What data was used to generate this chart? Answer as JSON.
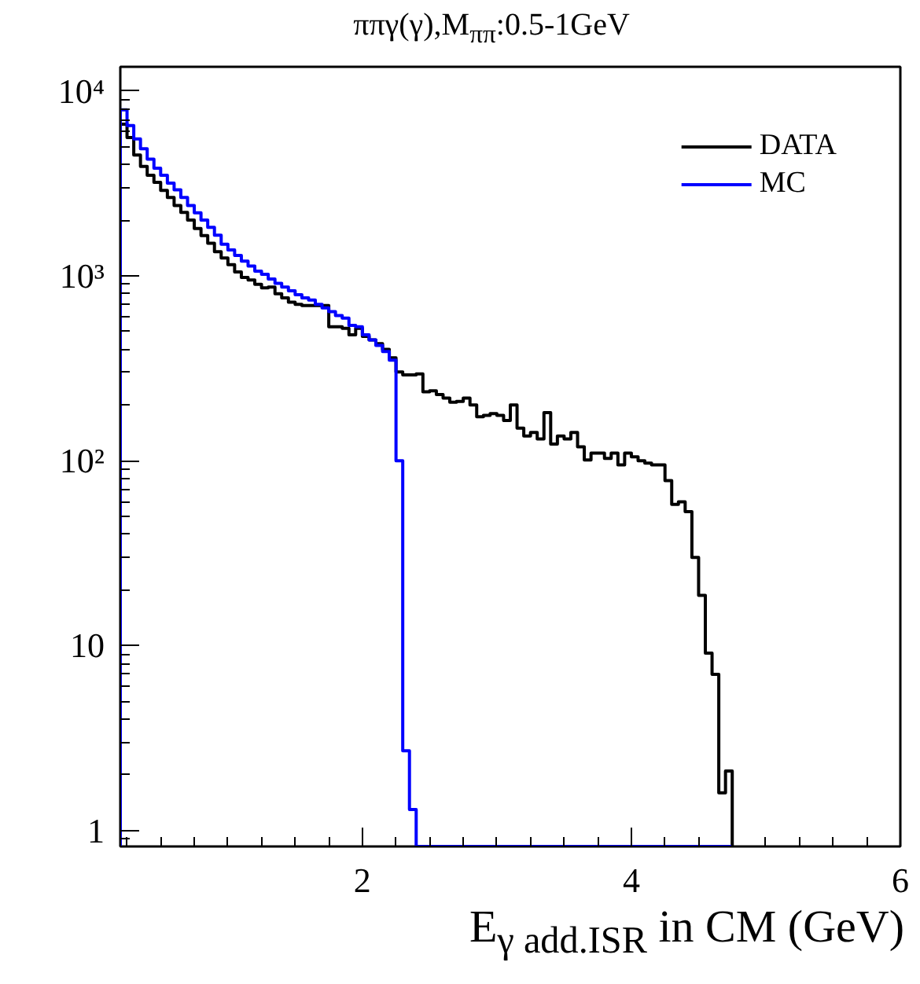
{
  "chart_data": {
    "type": "histogram",
    "title": "ππγ(γ),M$_{ππ}$:0.5-1GeV",
    "xlabel": "E$_{γ add.ISR}$ in CM (GeV)",
    "xlim": [
      0.2,
      6
    ],
    "ylim": [
      0.82,
      13500
    ],
    "log": "y",
    "legend": "top right",
    "xticks": [
      2,
      4,
      6
    ],
    "yticks": [
      1,
      10,
      {
        "value": 100,
        "label": "10²"
      },
      {
        "value": 1000,
        "label": "10³"
      },
      {
        "value": 10000,
        "label": "10⁴"
      }
    ],
    "bins": [
      0.2,
      0.25,
      0.3,
      0.35,
      0.4,
      0.45,
      0.5,
      0.55,
      0.6,
      0.65,
      0.7,
      0.75,
      0.8,
      0.85,
      0.9,
      0.95,
      1.0,
      1.05,
      1.1,
      1.15,
      1.2,
      1.25,
      1.3,
      1.35,
      1.4,
      1.45,
      1.5,
      1.55,
      1.6,
      1.65,
      1.7,
      1.75,
      1.8,
      1.85,
      1.9,
      1.95,
      2.0,
      2.05,
      2.1,
      2.15,
      2.2,
      2.25,
      2.3,
      2.35,
      2.4,
      2.45,
      2.5,
      2.55,
      2.6,
      2.65,
      2.7,
      2.75,
      2.8,
      2.85,
      2.9,
      2.95,
      3.0,
      3.05,
      3.1,
      3.15,
      3.2,
      3.25,
      3.3,
      3.35,
      3.4,
      3.45,
      3.5,
      3.55,
      3.6,
      3.65,
      3.7,
      3.75,
      3.8,
      3.85,
      3.9,
      3.95,
      4.0,
      4.05,
      4.1,
      4.15,
      4.2,
      4.25,
      4.3,
      4.35,
      4.4,
      4.45,
      4.5,
      4.55,
      4.6,
      4.65,
      4.7,
      4.75
    ],
    "series": [
      {
        "name": "DATA",
        "color": "#000000",
        "values": [
          6600,
          5600,
          4500,
          3900,
          3500,
          3200,
          2900,
          2650,
          2400,
          2200,
          2000,
          1800,
          1650,
          1500,
          1350,
          1250,
          1150,
          1050,
          980,
          950,
          900,
          860,
          870,
          800,
          760,
          720,
          700,
          690,
          690,
          690,
          690,
          530,
          530,
          520,
          480,
          520,
          470,
          450,
          430,
          400,
          360,
          302,
          291,
          291,
          295,
          236,
          239,
          228,
          218,
          207,
          209,
          218,
          200,
          173,
          176,
          180,
          176,
          165,
          200,
          150,
          136,
          142,
          131,
          182,
          123,
          136,
          131,
          142,
          119,
          101,
          110,
          110,
          103,
          110,
          95,
          110,
          105,
          100,
          97,
          95,
          95,
          78,
          58,
          60,
          53,
          30,
          18.7,
          9.1,
          7.0,
          1.6,
          2.1
        ]
      },
      {
        "name": "MC",
        "color": "#0000ff",
        "values": [
          7900,
          6500,
          5500,
          4870,
          4270,
          3820,
          3500,
          3170,
          2920,
          2650,
          2400,
          2190,
          2000,
          1830,
          1660,
          1480,
          1380,
          1290,
          1200,
          1130,
          1060,
          1020,
          960,
          910,
          870,
          830,
          790,
          760,
          740,
          700,
          670,
          640,
          610,
          590,
          540,
          530,
          480,
          450,
          420,
          390,
          350,
          100,
          2.7,
          1.3,
          null,
          null,
          null,
          null,
          null,
          null,
          null,
          null,
          null,
          null,
          null,
          null,
          null,
          null,
          null,
          null,
          null,
          null,
          null,
          null,
          null,
          null,
          null,
          null,
          null,
          null,
          null,
          null,
          null,
          null,
          null,
          null,
          null,
          null,
          null,
          null,
          null,
          null,
          null,
          null,
          null,
          null,
          null,
          null,
          null,
          null,
          null
        ]
      }
    ]
  }
}
